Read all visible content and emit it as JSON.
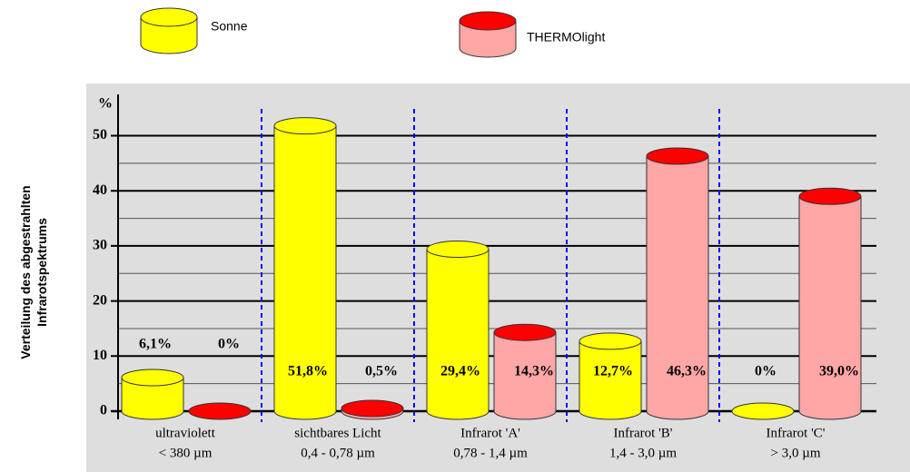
{
  "chart_data": {
    "type": "cylinder-bar",
    "y_label": [
      "Verteilung des abgestrahlten",
      "Infrarotspektrums"
    ],
    "y_unit": "%",
    "categories": [
      [
        "ultraviolett",
        "< 380 µm"
      ],
      [
        "sichtbares Licht",
        "0,4 - 0,78 µm"
      ],
      [
        "Infrarot 'A'",
        "0,78 - 1,4 µm"
      ],
      [
        "Infrarot 'B'",
        "1,4 - 3,0 µm"
      ],
      [
        "Infrarot 'C'",
        "> 3,0 µm"
      ]
    ],
    "series": [
      {
        "name": "Sonne",
        "color": "#ffff00",
        "top_color": "#ffff00",
        "values": [
          6.1,
          51.8,
          29.4,
          12.7,
          0
        ],
        "value_labels": [
          "6,1%",
          "51,8%",
          "29,4%",
          "12,7%",
          "0%"
        ]
      },
      {
        "name": "THERMOlight",
        "color": "#ffa6a6",
        "top_color": "#ff0000",
        "values": [
          0,
          0.5,
          14.3,
          46.3,
          39.0
        ],
        "value_labels": [
          "0%",
          "0,5%",
          "14,3%",
          "46,3%",
          "39,0%"
        ]
      }
    ],
    "ylim": [
      0,
      57.5
    ],
    "yticks": [
      0,
      10,
      20,
      30,
      40,
      50
    ],
    "yminor": [
      5,
      15,
      25,
      35,
      45
    ],
    "grid": true
  }
}
